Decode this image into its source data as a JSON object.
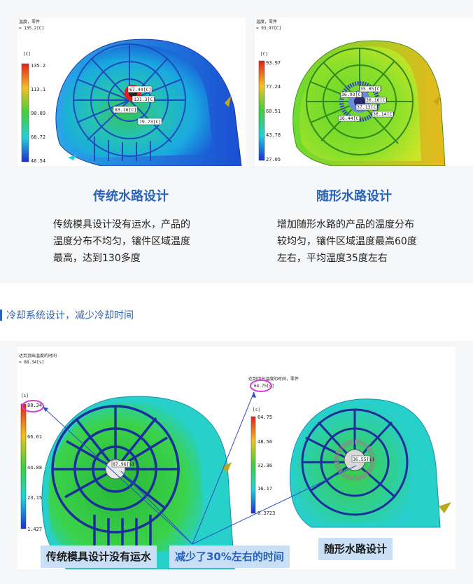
{
  "top": {
    "left": {
      "plot_header": "温度，零件",
      "plot_value": "= 135.2[C]",
      "unit": "[C]",
      "scale": [
        "135.2",
        "113.1",
        "90.89",
        "68.72",
        "46.54"
      ],
      "callouts": [
        "67.44[C]",
        "131.3[C]",
        "83.16[C]",
        "79.73[C]"
      ],
      "title": "传统水路设计",
      "desc": [
        "传统模具设计没有运水，产品的",
        "温度分布不均匀，镶件区域温度",
        "最高，达到130多度"
      ]
    },
    "right": {
      "plot_header": "温度，零件",
      "plot_value": "= 93.97[C]",
      "unit": "[C]",
      "scale": [
        "93.97",
        "77.24",
        "60.51",
        "43.78",
        "27.05"
      ],
      "callouts": [
        "36.93[C]",
        "36.16[C]",
        "37.13[C]",
        "36.14[C]",
        "36.44[C]",
        "35.05[C]"
      ],
      "title": "随形水路设计",
      "desc": [
        "增加随形水路的产品的温度分布",
        "较均匀，镶件区域温度最高60度",
        "左右，平均温度35度左右"
      ]
    }
  },
  "section": {
    "title": "冷却系统设计，减少冷却时间"
  },
  "bottom": {
    "left_plot_header": "达到顶出温度的时间",
    "left_plot_value": "= 88.34[s]",
    "left_unit": "[s]",
    "left_scale": [
      "88.34",
      "66.61",
      "44.88",
      "23.15",
      "1.427"
    ],
    "left_callout": "87.96[s]",
    "right_plot_header": "达到顶出温度的时间，零件",
    "right_plot_value": "64.75[s]",
    "right_unit": "[s]",
    "right_scale": [
      "64.75",
      "48.56",
      "32.36",
      "16.17",
      "0.3723"
    ],
    "right_callout": "36.55[s]",
    "tag_traditional": "传统模具设计没有运水",
    "tag_reduced": "减少了30%左右的时间",
    "tag_conformal": "随形水路设计"
  },
  "colors": {
    "accent": "#2b63b8",
    "tag_bg": "#c9dff5",
    "section_bg": "#f5f6f8",
    "highlight_ring": "#d83bd6"
  }
}
